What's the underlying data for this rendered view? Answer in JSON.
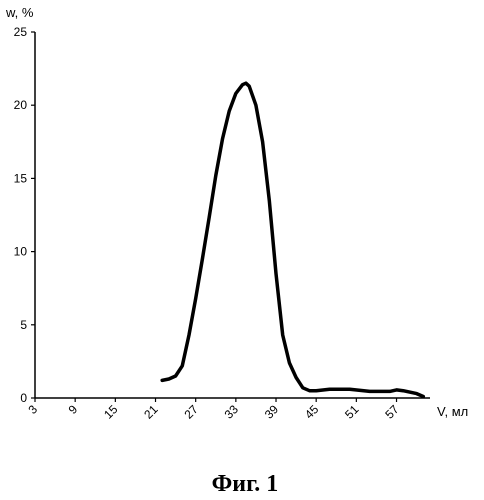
{
  "chart_data": {
    "type": "line",
    "title": "",
    "caption": "Фиг. 1",
    "ylabel": "w, %",
    "xlabel": "V, мл",
    "xlim": [
      3,
      62
    ],
    "ylim": [
      0,
      25
    ],
    "x_ticks": [
      3,
      9,
      15,
      21,
      27,
      33,
      39,
      45,
      51,
      57
    ],
    "y_ticks": [
      0,
      5,
      10,
      15,
      20,
      25
    ],
    "grid": false,
    "legend": "none",
    "line_color": "#000000",
    "series": [
      {
        "x": [
          22,
          23,
          24,
          25,
          26,
          27,
          28,
          29,
          30,
          31,
          32,
          33,
          34,
          34.5,
          35,
          36,
          37,
          38,
          39,
          40,
          41,
          42,
          43,
          44,
          45,
          47,
          50,
          53,
          56,
          57,
          58,
          60,
          61
        ],
        "y": [
          1.2,
          1.3,
          1.5,
          2.2,
          4.3,
          6.8,
          9.5,
          12.3,
          15.2,
          17.7,
          19.6,
          20.8,
          21.4,
          21.5,
          21.3,
          20.0,
          17.5,
          13.5,
          8.5,
          4.3,
          2.4,
          1.4,
          0.7,
          0.5,
          0.5,
          0.6,
          0.6,
          0.45,
          0.45,
          0.55,
          0.5,
          0.3,
          0.1
        ]
      }
    ]
  }
}
